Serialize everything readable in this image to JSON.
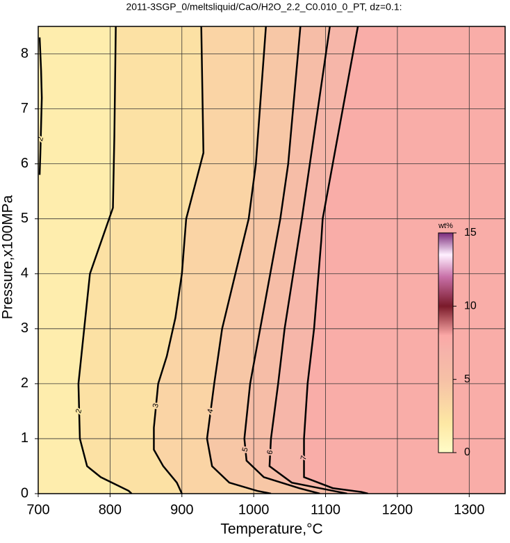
{
  "chart_data": {
    "type": "contour",
    "title": "2011-3SGP_0/meltsliquid/CaO/H2O_2.2_C0.010_0_PT, dz=0.1:",
    "x_label": "Temperature,°C",
    "y_label": "Pressure,x100MPa",
    "xlim": [
      700,
      1350
    ],
    "ylim": [
      0,
      8.5
    ],
    "xticks": [
      700,
      800,
      900,
      1000,
      1100,
      1200,
      1300
    ],
    "yticks": [
      0,
      1,
      2,
      3,
      4,
      5,
      6,
      7,
      8
    ],
    "grid": true,
    "line_color": "#000000",
    "contours": [
      {
        "level": 2,
        "x": [
          808,
          806,
          804,
          772,
          760,
          756,
          758,
          768,
          787,
          826,
          830
        ],
        "y": [
          8.5,
          6.5,
          5.2,
          4,
          2.5,
          2,
          1,
          0.5,
          0.3,
          0.05,
          0
        ]
      },
      {
        "level": 2,
        "x": [
          702,
          704,
          705,
          704,
          703,
          702
        ],
        "y": [
          8.3,
          7.7,
          7.2,
          6.7,
          6.2,
          5.8
        ]
      },
      {
        "level": 3,
        "x": [
          927,
          930,
          906,
          900,
          891,
          879,
          867,
          861,
          861,
          874,
          893,
          900
        ],
        "y": [
          8.5,
          6.2,
          5,
          4,
          3.2,
          2.5,
          2,
          1.2,
          0.8,
          0.5,
          0.2,
          0
        ]
      },
      {
        "level": 4,
        "x": [
          1017,
          1003,
          993,
          980,
          956,
          945,
          935,
          942,
          966,
          1005,
          1024
        ],
        "y": [
          8.5,
          6,
          5,
          4.3,
          3,
          2,
          1,
          0.5,
          0.2,
          0.05,
          0
        ]
      },
      {
        "level": 5,
        "x": [
          1065,
          1048,
          1037,
          1009,
          995,
          987,
          990,
          1014,
          1063,
          1092
        ],
        "y": [
          8.5,
          6,
          5,
          3,
          2,
          1,
          0.6,
          0.3,
          0.1,
          0
        ]
      },
      {
        "level": 6,
        "x": [
          1106,
          1067,
          1043,
          1034,
          1024,
          1022,
          1053,
          1111,
          1130
        ],
        "y": [
          8.5,
          5,
          3,
          2,
          1,
          0.5,
          0.2,
          0.05,
          0
        ]
      },
      {
        "level": 7,
        "x": [
          1145,
          1096,
          1094,
          1084,
          1075,
          1070,
          1070,
          1110,
          1150,
          1159
        ],
        "y": [
          8.5,
          5,
          4.6,
          3,
          2,
          1,
          0.3,
          0.1,
          0.03,
          0
        ]
      }
    ],
    "colorbar": {
      "label": "wt%",
      "lim": [
        0,
        15
      ],
      "ticks": [
        0,
        5,
        10,
        15
      ],
      "colormap": [
        {
          "value": 0,
          "color": "#fffcc8"
        },
        {
          "value": 2,
          "color": "#fde8a4"
        },
        {
          "value": 5,
          "color": "#f6c0a6"
        },
        {
          "value": 7,
          "color": "#f6b2aa"
        },
        {
          "value": 8,
          "color": "#fba8a6"
        },
        {
          "value": 10,
          "color": "#7a1a2a"
        },
        {
          "value": 12,
          "color": "#c870a8"
        },
        {
          "value": 13.5,
          "color": "#fff0ff"
        },
        {
          "value": 15,
          "color": "#7a2a7a"
        }
      ]
    }
  }
}
